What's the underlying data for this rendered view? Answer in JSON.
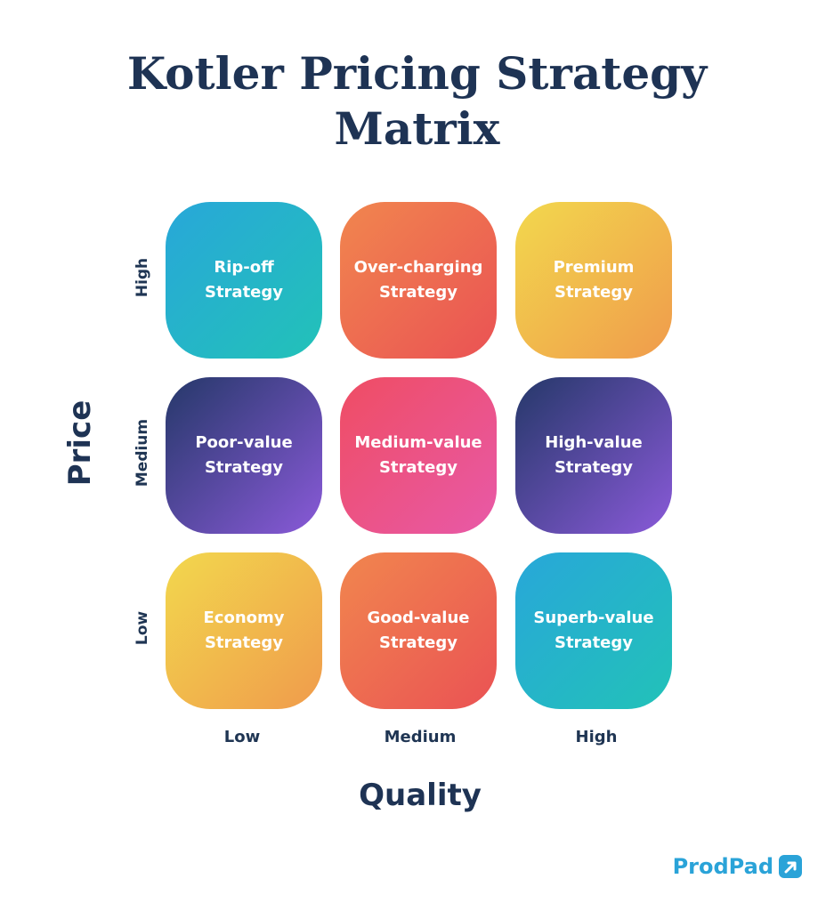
{
  "title": {
    "line1": "Kotler Pricing Strategy",
    "line2": "Matrix"
  },
  "axes": {
    "y_title": "Price",
    "x_title": "Quality",
    "rows": [
      "High",
      "Medium",
      "Low"
    ],
    "cols": [
      "Low",
      "Medium",
      "High"
    ]
  },
  "cells": [
    {
      "line1": "Rip-off",
      "line2": "Strategy",
      "color_from": "#28a7d9",
      "color_to": "#22c2b8"
    },
    {
      "line1": "Over-charging",
      "line2": "Strategy",
      "color_from": "#f1864e",
      "color_to": "#ea5254"
    },
    {
      "line1": "Premium",
      "line2": "Strategy",
      "color_from": "#f2d84d",
      "color_to": "#f09b4c"
    },
    {
      "line1": "Poor-value",
      "line2": "Strategy",
      "color_from": "#253869",
      "color_to": "#8a5ad9"
    },
    {
      "line1": "Medium-value",
      "line2": "Strategy",
      "color_from": "#ef4d63",
      "color_to": "#e859a8"
    },
    {
      "line1": "High-value",
      "line2": "Strategy",
      "color_from": "#253869",
      "color_to": "#8a5ad9"
    },
    {
      "line1": "Economy",
      "line2": "Strategy",
      "color_from": "#f2d84d",
      "color_to": "#f09b4c"
    },
    {
      "line1": "Good-value",
      "line2": "Strategy",
      "color_from": "#f1864e",
      "color_to": "#ea5254"
    },
    {
      "line1": "Superb-value",
      "line2": "Strategy",
      "color_from": "#28a7d9",
      "color_to": "#22c2b8"
    }
  ],
  "brand": {
    "name": "ProdPad",
    "color": "#2aa3d8",
    "icon": "prodpad-arrow-icon"
  }
}
